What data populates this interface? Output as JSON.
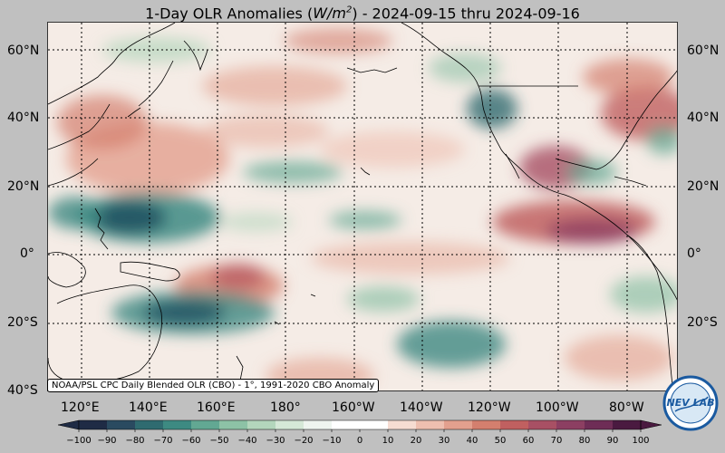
{
  "title_main": "1-Day OLR Anomalies (",
  "title_unit": "W/m",
  "title_unit_exp": "2",
  "title_tail": ") - 2024-09-15 thru 2024-09-16",
  "lat_labels": [
    "60°N",
    "40°N",
    "20°N",
    "0°",
    "20°S",
    "40°S"
  ],
  "lon_labels": [
    "120°E",
    "140°E",
    "160°E",
    "180°",
    "160°W",
    "140°W",
    "120°W",
    "100°W",
    "80°W"
  ],
  "source_label": "NOAA/PSL CPC Daily Blended OLR (CBO) - 1°, 1991-2020 CBO Anomaly",
  "colorbar": {
    "ticks": [
      -100,
      -90,
      -80,
      -70,
      -60,
      -50,
      -40,
      -30,
      -20,
      -10,
      0,
      10,
      20,
      30,
      40,
      50,
      60,
      70,
      80,
      90,
      100
    ],
    "colors": [
      "#1f2b45",
      "#2a4a60",
      "#2f6b70",
      "#3d8a82",
      "#62a893",
      "#8dc2a6",
      "#b3d6bc",
      "#d5e8d7",
      "#eef4ef",
      "#ffffff",
      "#ffffff",
      "#f6dcd2",
      "#eebfb0",
      "#e3a08e",
      "#d47f6e",
      "#c06060",
      "#a85064",
      "#8c3f62",
      "#6e2d56",
      "#4a1a40"
    ]
  },
  "logo_text": "NEV LAB",
  "colors": {
    "background": "#c0c0c0",
    "map_base": "#f5ece6",
    "teal_dark": "#1f4f5f",
    "red_dark": "#8c3f55"
  }
}
